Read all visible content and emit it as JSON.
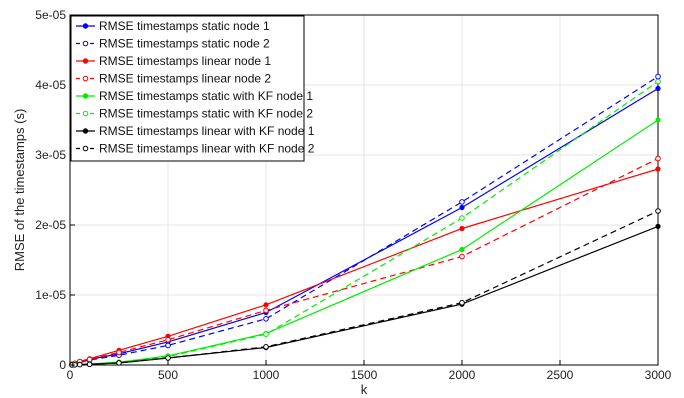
{
  "chart_data": {
    "type": "line",
    "title": "",
    "xlabel": "k",
    "ylabel": "RMSE of the timestamps (s)",
    "xlim": [
      0,
      3000
    ],
    "ylim": [
      0,
      5e-05
    ],
    "xticks": [
      0,
      500,
      1000,
      1500,
      2000,
      2500,
      3000
    ],
    "xtick_labels": [
      "0",
      "500",
      "1000",
      "1500",
      "2000",
      "2500",
      "3000"
    ],
    "yticks": [
      0,
      1e-05,
      2e-05,
      3e-05,
      4e-05,
      5e-05
    ],
    "ytick_labels": [
      "0",
      "1e-05",
      "2e-05",
      "3e-05",
      "4e-05",
      "5e-05"
    ],
    "grid": true,
    "legend_position": "top-left",
    "x": [
      10,
      25,
      50,
      100,
      250,
      500,
      1000,
      2000,
      3000
    ],
    "series": [
      {
        "name": "RMSE timestamps static node 1",
        "color": "#0000ff",
        "dashed": false,
        "marker": "dot",
        "values": [
          1e-07,
          2.5e-07,
          5e-07,
          8e-07,
          1.6e-06,
          3.3e-06,
          7.5e-06,
          2.25e-05,
          3.95e-05
        ]
      },
      {
        "name": "RMSE timestamps static node 2",
        "color": "#0000ff",
        "dashed": true,
        "marker": "circle",
        "values": [
          1e-07,
          2e-07,
          4e-07,
          7e-07,
          1.4e-06,
          2.8e-06,
          6.6e-06,
          2.33e-05,
          4.12e-05
        ]
      },
      {
        "name": "RMSE timestamps linear node 1",
        "color": "#ff0000",
        "dashed": false,
        "marker": "dot",
        "values": [
          1e-07,
          2.5e-07,
          5e-07,
          9e-07,
          2.1e-06,
          4.1e-06,
          8.6e-06,
          1.95e-05,
          2.8e-05
        ]
      },
      {
        "name": "RMSE timestamps linear node 2",
        "color": "#ff0000",
        "dashed": true,
        "marker": "circle",
        "values": [
          1e-07,
          2.5e-07,
          5e-07,
          8e-07,
          1.8e-06,
          3.6e-06,
          7.8e-06,
          1.55e-05,
          2.95e-05
        ]
      },
      {
        "name": "RMSE timestamps static with KF node 1",
        "color": "#00ee00",
        "dashed": false,
        "marker": "dot",
        "values": [
          1e-08,
          3e-08,
          8e-08,
          1.5e-07,
          4e-07,
          1.3e-06,
          4.5e-06,
          1.65e-05,
          3.5e-05
        ]
      },
      {
        "name": "RMSE timestamps static with KF node 2",
        "color": "#00ee00",
        "dashed": true,
        "marker": "circle",
        "values": [
          1e-08,
          3e-08,
          8e-08,
          1.5e-07,
          4e-07,
          1.2e-06,
          4.4e-06,
          2.1e-05,
          4.05e-05
        ]
      },
      {
        "name": "RMSE timestamps linear with KF node 1",
        "color": "#000000",
        "dashed": false,
        "marker": "dot",
        "values": [
          1e-08,
          3e-08,
          6e-08,
          1e-07,
          3e-07,
          1e-06,
          2.5e-06,
          8.7e-06,
          1.98e-05
        ]
      },
      {
        "name": "RMSE timestamps linear with KF node 2",
        "color": "#000000",
        "dashed": true,
        "marker": "circle",
        "values": [
          1e-08,
          3e-08,
          6e-08,
          1e-07,
          3e-07,
          1e-06,
          2.6e-06,
          8.9e-06,
          2.2e-05
        ]
      }
    ]
  }
}
